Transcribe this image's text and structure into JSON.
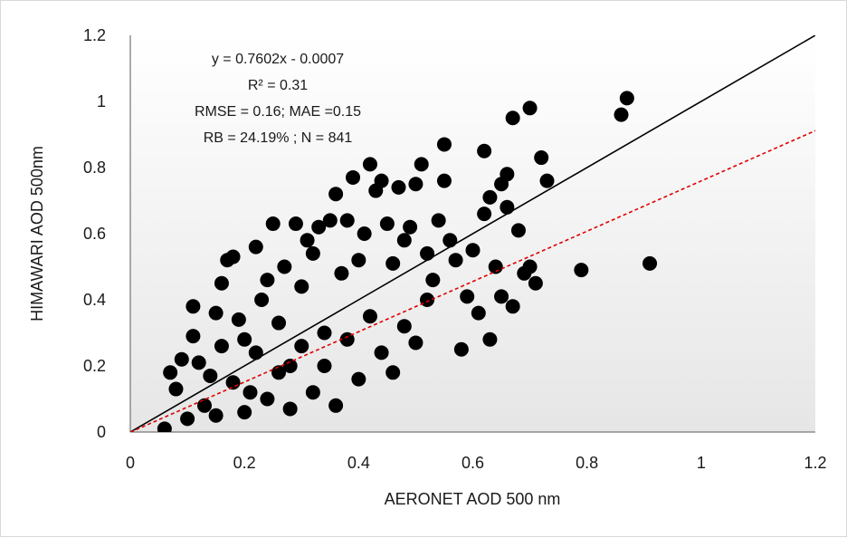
{
  "chart_data": {
    "type": "scatter",
    "xlabel": "AERONET AOD 500 nm",
    "ylabel": "HIMAWARI AOD 500nm",
    "xlim": [
      0,
      1.2
    ],
    "ylim": [
      0,
      1.2
    ],
    "x_ticks": [
      "0",
      "0.2",
      "0.4",
      "0.6",
      "0.8",
      "1",
      "1.2"
    ],
    "y_ticks": [
      "0",
      "0.2",
      "0.4",
      "0.6",
      "0.8",
      "1",
      "1.2"
    ],
    "grid": false,
    "background": "gradient white-to-light-gray",
    "marker_color": "#000000",
    "annotations": [
      "y = 0.7602x - 0.0007",
      "R² = 0.31",
      "RMSE = 0.16; MAE =0.15",
      "RB = 24.19% ; N = 841"
    ],
    "lines": [
      {
        "kind": "1:1",
        "slope": 1,
        "intercept": 0,
        "color": "#000000",
        "style": "solid"
      },
      {
        "kind": "fit",
        "slope": 0.7602,
        "intercept": -0.0007,
        "color": "#e00000",
        "style": "dashed"
      }
    ],
    "points": [
      [
        0.06,
        0.01
      ],
      [
        0.07,
        0.18
      ],
      [
        0.08,
        0.13
      ],
      [
        0.09,
        0.22
      ],
      [
        0.1,
        0.04
      ],
      [
        0.11,
        0.29
      ],
      [
        0.11,
        0.38
      ],
      [
        0.12,
        0.21
      ],
      [
        0.13,
        0.08
      ],
      [
        0.14,
        0.17
      ],
      [
        0.15,
        0.36
      ],
      [
        0.16,
        0.26
      ],
      [
        0.16,
        0.45
      ],
      [
        0.17,
        0.52
      ],
      [
        0.18,
        0.53
      ],
      [
        0.19,
        0.34
      ],
      [
        0.2,
        0.28
      ],
      [
        0.21,
        0.12
      ],
      [
        0.22,
        0.56
      ],
      [
        0.23,
        0.4
      ],
      [
        0.24,
        0.46
      ],
      [
        0.25,
        0.63
      ],
      [
        0.26,
        0.33
      ],
      [
        0.27,
        0.5
      ],
      [
        0.28,
        0.2
      ],
      [
        0.29,
        0.63
      ],
      [
        0.3,
        0.44
      ],
      [
        0.31,
        0.58
      ],
      [
        0.32,
        0.54
      ],
      [
        0.33,
        0.62
      ],
      [
        0.34,
        0.3
      ],
      [
        0.35,
        0.64
      ],
      [
        0.36,
        0.72
      ],
      [
        0.37,
        0.48
      ],
      [
        0.38,
        0.64
      ],
      [
        0.39,
        0.77
      ],
      [
        0.4,
        0.52
      ],
      [
        0.41,
        0.6
      ],
      [
        0.42,
        0.81
      ],
      [
        0.43,
        0.73
      ],
      [
        0.44,
        0.76
      ],
      [
        0.45,
        0.63
      ],
      [
        0.46,
        0.51
      ],
      [
        0.47,
        0.74
      ],
      [
        0.48,
        0.58
      ],
      [
        0.49,
        0.62
      ],
      [
        0.5,
        0.75
      ],
      [
        0.51,
        0.81
      ],
      [
        0.52,
        0.54
      ],
      [
        0.53,
        0.46
      ],
      [
        0.54,
        0.64
      ],
      [
        0.55,
        0.76
      ],
      [
        0.55,
        0.87
      ],
      [
        0.56,
        0.58
      ],
      [
        0.57,
        0.52
      ],
      [
        0.58,
        0.25
      ],
      [
        0.59,
        0.41
      ],
      [
        0.6,
        0.55
      ],
      [
        0.61,
        0.36
      ],
      [
        0.62,
        0.85
      ],
      [
        0.62,
        0.66
      ],
      [
        0.63,
        0.71
      ],
      [
        0.63,
        0.28
      ],
      [
        0.64,
        0.5
      ],
      [
        0.65,
        0.75
      ],
      [
        0.65,
        0.41
      ],
      [
        0.66,
        0.78
      ],
      [
        0.66,
        0.68
      ],
      [
        0.67,
        0.95
      ],
      [
        0.67,
        0.38
      ],
      [
        0.68,
        0.61
      ],
      [
        0.69,
        0.48
      ],
      [
        0.7,
        0.98
      ],
      [
        0.7,
        0.5
      ],
      [
        0.71,
        0.45
      ],
      [
        0.72,
        0.83
      ],
      [
        0.73,
        0.76
      ],
      [
        0.79,
        0.49
      ],
      [
        0.86,
        0.96
      ],
      [
        0.87,
        1.01
      ],
      [
        0.91,
        0.51
      ],
      [
        0.15,
        0.05
      ],
      [
        0.18,
        0.15
      ],
      [
        0.2,
        0.06
      ],
      [
        0.22,
        0.24
      ],
      [
        0.24,
        0.1
      ],
      [
        0.26,
        0.18
      ],
      [
        0.28,
        0.07
      ],
      [
        0.3,
        0.26
      ],
      [
        0.32,
        0.12
      ],
      [
        0.34,
        0.2
      ],
      [
        0.36,
        0.08
      ],
      [
        0.38,
        0.28
      ],
      [
        0.4,
        0.16
      ],
      [
        0.42,
        0.35
      ],
      [
        0.44,
        0.24
      ],
      [
        0.46,
        0.18
      ],
      [
        0.48,
        0.32
      ],
      [
        0.5,
        0.27
      ],
      [
        0.52,
        0.4
      ]
    ]
  }
}
